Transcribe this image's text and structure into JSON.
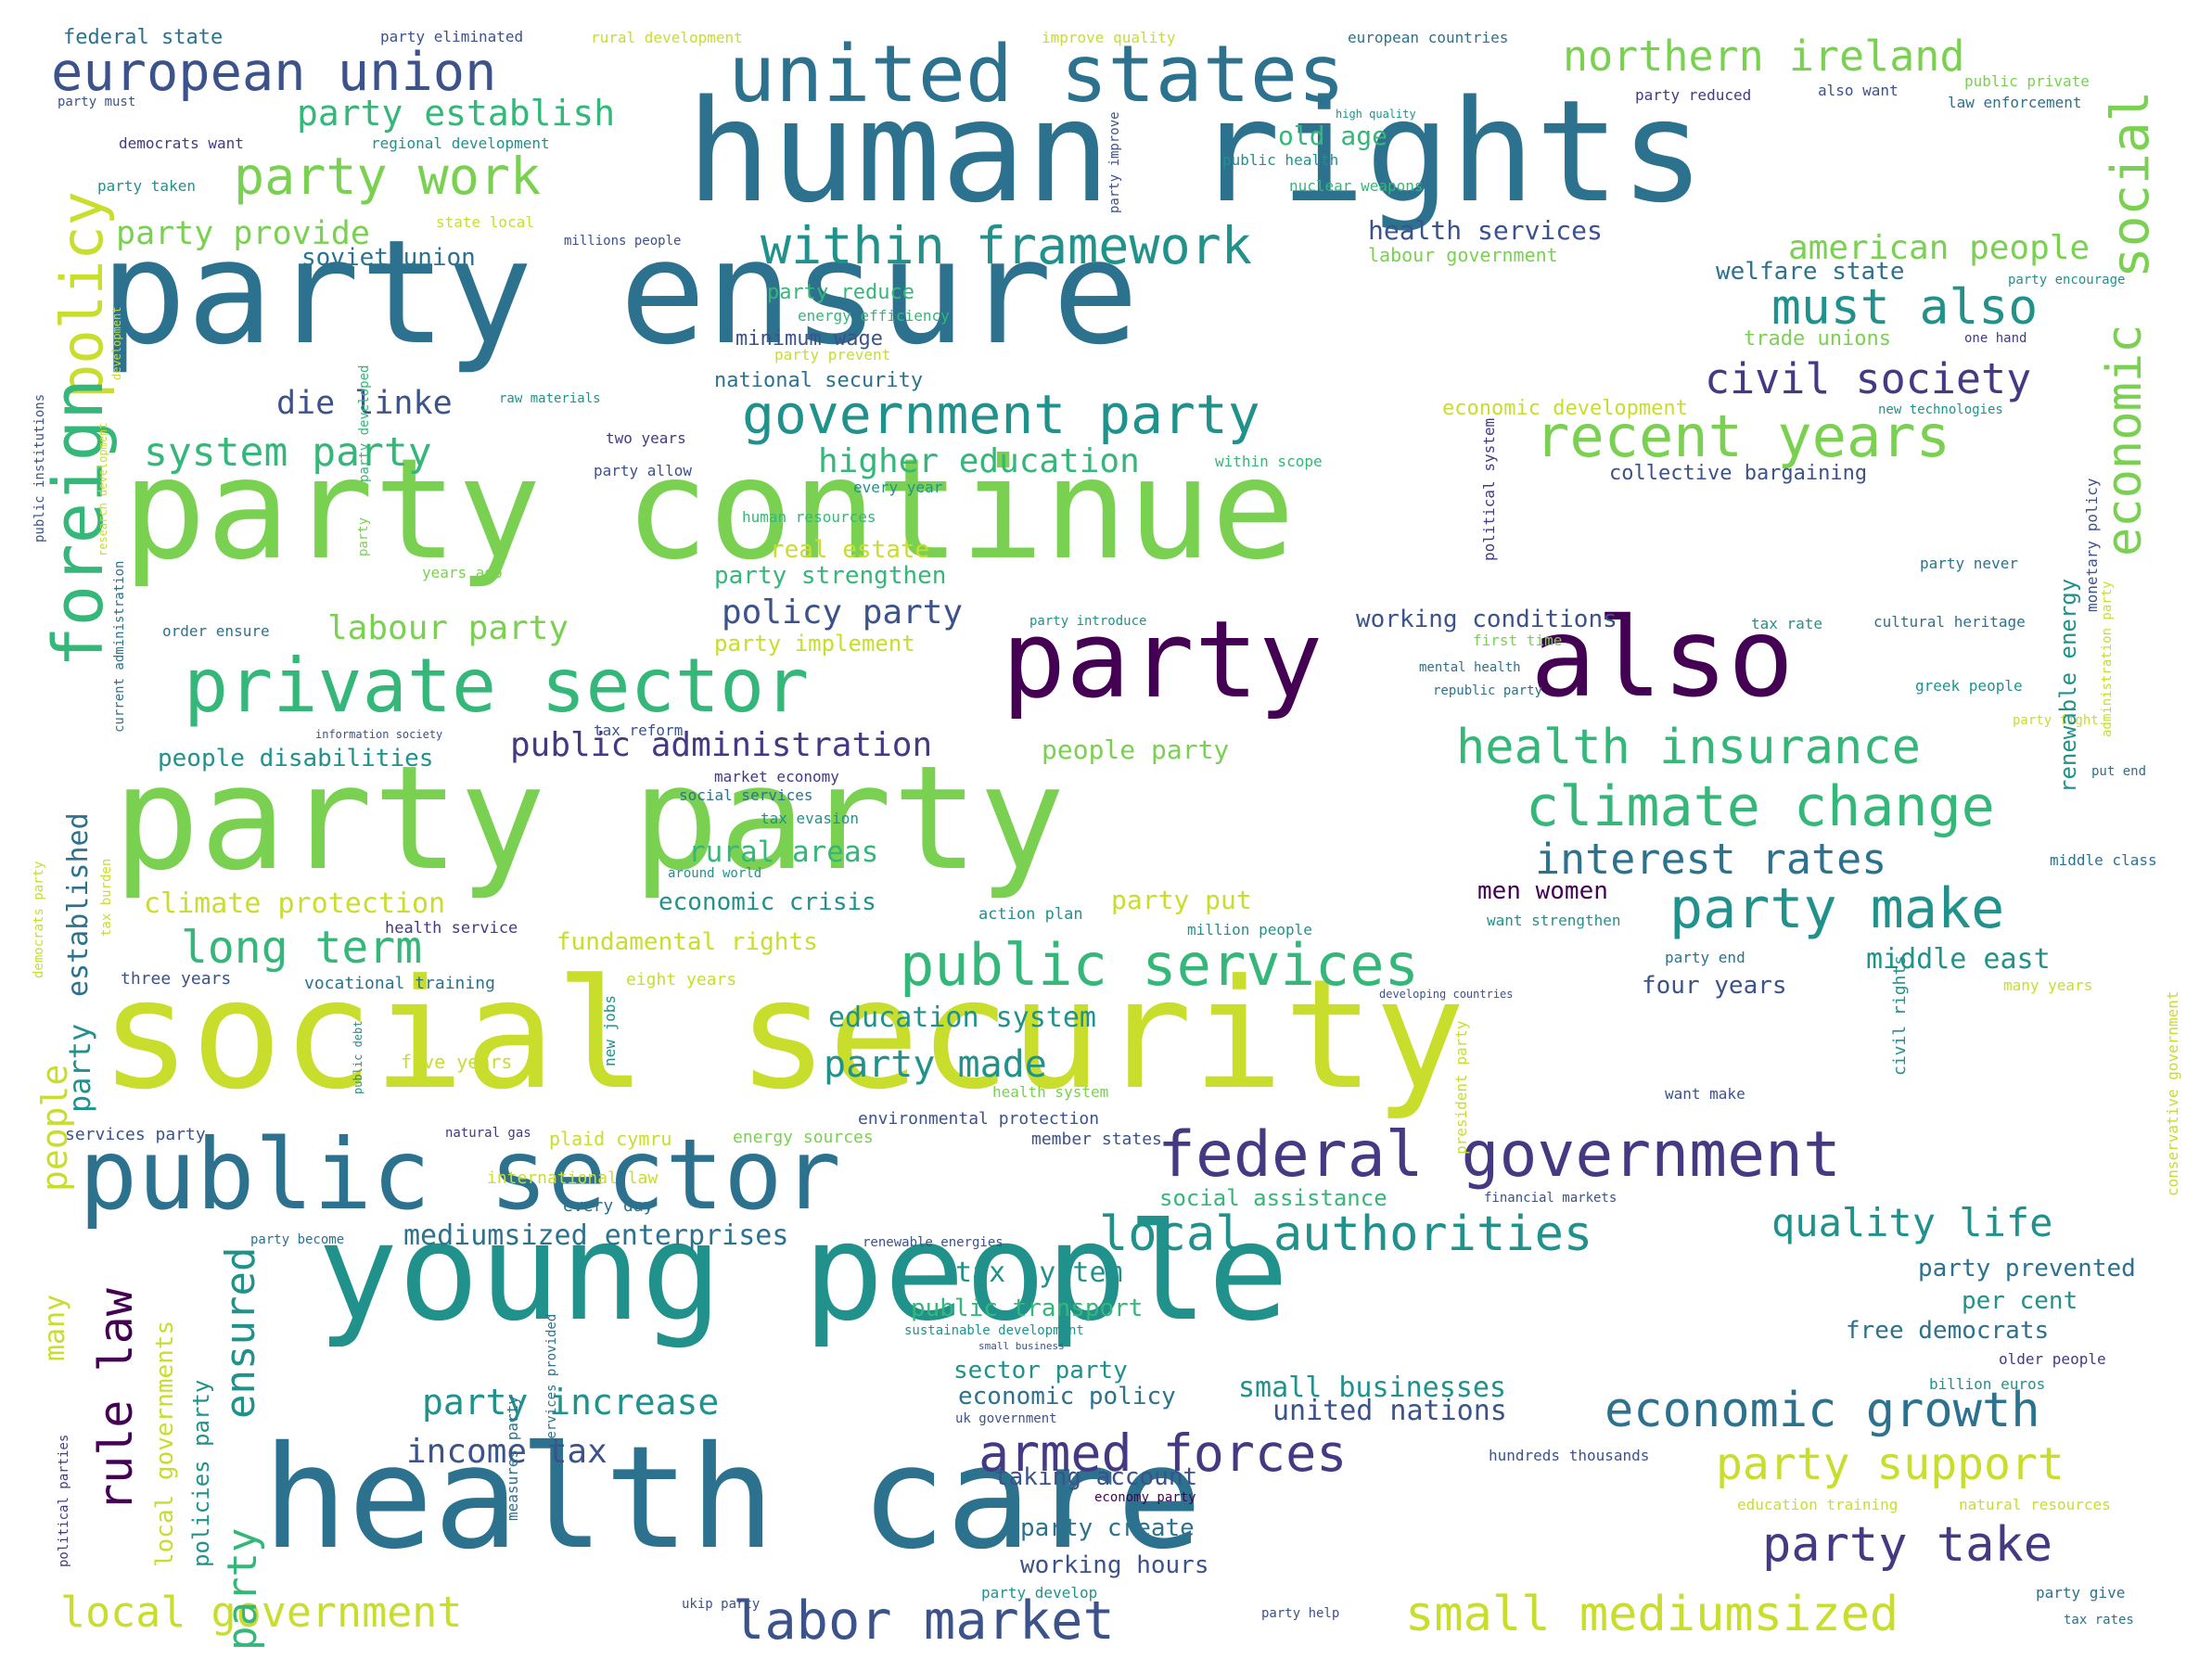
{
  "palette": {
    "yellow": "#c8dd2c",
    "light_green": "#7ad151",
    "green": "#35b779",
    "teal": "#21918c",
    "blue_teal": "#2c728e",
    "blue": "#3b528b",
    "indigo": "#443983",
    "purple": "#440154"
  },
  "words": [
    {
      "text": "human rights",
      "color": "blue_teal"
    },
    {
      "text": "party ensure",
      "color": "blue_teal"
    },
    {
      "text": "party continue",
      "color": "light_green"
    },
    {
      "text": "party",
      "color": "purple"
    },
    {
      "text": "also",
      "color": "purple"
    },
    {
      "text": "party party",
      "color": "light_green"
    },
    {
      "text": "social security",
      "color": "yellow"
    },
    {
      "text": "young people",
      "color": "teal"
    },
    {
      "text": "health care",
      "color": "blue_teal"
    },
    {
      "text": "public sector",
      "color": "blue_teal"
    },
    {
      "text": "united states",
      "color": "blue_teal"
    },
    {
      "text": "european union",
      "color": "blue"
    },
    {
      "text": "private sector",
      "color": "green"
    },
    {
      "text": "federal government",
      "color": "indigo"
    },
    {
      "text": "northern ireland",
      "color": "light_green"
    },
    {
      "text": "within framework",
      "color": "teal"
    },
    {
      "text": "government party",
      "color": "teal"
    },
    {
      "text": "recent years",
      "color": "light_green"
    },
    {
      "text": "must also",
      "color": "teal"
    },
    {
      "text": "civil society",
      "color": "indigo"
    },
    {
      "text": "health insurance",
      "color": "green"
    },
    {
      "text": "climate change",
      "color": "green"
    },
    {
      "text": "party make",
      "color": "teal"
    },
    {
      "text": "interest rates",
      "color": "blue_teal"
    },
    {
      "text": "public services",
      "color": "green"
    },
    {
      "text": "party made",
      "color": "teal"
    },
    {
      "text": "local authorities",
      "color": "teal"
    },
    {
      "text": "quality life",
      "color": "teal"
    },
    {
      "text": "economic growth",
      "color": "blue_teal"
    },
    {
      "text": "armed forces",
      "color": "indigo"
    },
    {
      "text": "party support",
      "color": "yellow"
    },
    {
      "text": "party take",
      "color": "indigo"
    },
    {
      "text": "labor market",
      "color": "blue"
    },
    {
      "text": "small mediumsized",
      "color": "yellow"
    },
    {
      "text": "local government",
      "color": "yellow"
    },
    {
      "text": "party work",
      "color": "light_green"
    },
    {
      "text": "party establish",
      "color": "green"
    },
    {
      "text": "party provide",
      "color": "light_green"
    },
    {
      "text": "long term",
      "color": "green"
    },
    {
      "text": "system party",
      "color": "green"
    },
    {
      "text": "die linke",
      "color": "blue"
    },
    {
      "text": "labour party",
      "color": "light_green"
    },
    {
      "text": "policy party",
      "color": "blue"
    },
    {
      "text": "public administration",
      "color": "indigo"
    },
    {
      "text": "people disabilities",
      "color": "teal"
    },
    {
      "text": "higher education",
      "color": "green"
    },
    {
      "text": "party strengthen",
      "color": "green"
    },
    {
      "text": "real estate",
      "color": "yellow"
    },
    {
      "text": "rural areas",
      "color": "green"
    },
    {
      "text": "economic crisis",
      "color": "teal"
    },
    {
      "text": "climate protection",
      "color": "yellow"
    },
    {
      "text": "fundamental rights",
      "color": "yellow"
    },
    {
      "text": "education system",
      "color": "teal"
    },
    {
      "text": "mediumsized enterprises",
      "color": "blue_teal"
    },
    {
      "text": "income tax",
      "color": "blue"
    },
    {
      "text": "party increase",
      "color": "teal"
    },
    {
      "text": "small businesses",
      "color": "teal"
    },
    {
      "text": "united nations",
      "color": "blue"
    },
    {
      "text": "tax system",
      "color": "teal"
    },
    {
      "text": "public transport",
      "color": "green"
    },
    {
      "text": "sector party",
      "color": "teal"
    },
    {
      "text": "economic policy",
      "color": "blue_teal"
    },
    {
      "text": "taking account",
      "color": "blue"
    },
    {
      "text": "party create",
      "color": "blue_teal"
    },
    {
      "text": "working hours",
      "color": "blue"
    },
    {
      "text": "men women",
      "color": "purple"
    },
    {
      "text": "middle east",
      "color": "teal"
    },
    {
      "text": "four years",
      "color": "blue"
    },
    {
      "text": "party prevented",
      "color": "blue_teal"
    },
    {
      "text": "per cent",
      "color": "teal"
    },
    {
      "text": "free democrats",
      "color": "blue_teal"
    },
    {
      "text": "working conditions",
      "color": "blue"
    },
    {
      "text": "american people",
      "color": "light_green"
    },
    {
      "text": "welfare state",
      "color": "blue_teal"
    },
    {
      "text": "health services",
      "color": "blue"
    },
    {
      "text": "soviet union",
      "color": "blue_teal"
    },
    {
      "text": "minimum wage",
      "color": "blue"
    },
    {
      "text": "national security",
      "color": "blue_teal"
    },
    {
      "text": "party reduce",
      "color": "green"
    },
    {
      "text": "collective bargaining",
      "color": "blue"
    },
    {
      "text": "old age",
      "color": "green"
    },
    {
      "text": "trade unions",
      "color": "light_green"
    },
    {
      "text": "people party",
      "color": "light_green"
    },
    {
      "text": "party implement",
      "color": "yellow"
    },
    {
      "text": "party put",
      "color": "yellow"
    },
    {
      "text": "social assistance",
      "color": "green"
    },
    {
      "text": "economic development",
      "color": "yellow"
    },
    {
      "text": "services party",
      "color": "blue"
    },
    {
      "text": "environmental protection",
      "color": "blue"
    },
    {
      "text": "member states",
      "color": "blue"
    },
    {
      "text": "energy sources",
      "color": "light_green"
    },
    {
      "text": "plaid cymru",
      "color": "yellow"
    },
    {
      "text": "international law",
      "color": "yellow"
    },
    {
      "text": "every day",
      "color": "blue_teal"
    },
    {
      "text": "five years",
      "color": "yellow"
    },
    {
      "text": "three years",
      "color": "blue"
    },
    {
      "text": "eight years",
      "color": "yellow"
    },
    {
      "text": "vocational training",
      "color": "blue_teal"
    },
    {
      "text": "health service",
      "color": "indigo"
    },
    {
      "text": "action plan",
      "color": "teal"
    },
    {
      "text": "million people",
      "color": "teal"
    },
    {
      "text": "want strengthen",
      "color": "teal"
    },
    {
      "text": "party end",
      "color": "blue_teal"
    },
    {
      "text": "many years",
      "color": "yellow"
    },
    {
      "text": "want make",
      "color": "blue"
    },
    {
      "text": "financial markets",
      "color": "blue"
    },
    {
      "text": "renewable energies",
      "color": "blue"
    },
    {
      "text": "sustainable development",
      "color": "teal"
    },
    {
      "text": "small business",
      "color": "blue"
    },
    {
      "text": "uk government",
      "color": "blue"
    },
    {
      "text": "economy party",
      "color": "purple"
    },
    {
      "text": "hundreds thousands",
      "color": "blue"
    },
    {
      "text": "education training",
      "color": "yellow"
    },
    {
      "text": "natural resources",
      "color": "yellow"
    },
    {
      "text": "party develop",
      "color": "teal"
    },
    {
      "text": "party help",
      "color": "blue"
    },
    {
      "text": "ukip party",
      "color": "blue"
    },
    {
      "text": "party give",
      "color": "blue_teal"
    },
    {
      "text": "tax rates",
      "color": "blue_teal"
    },
    {
      "text": "older people",
      "color": "indigo"
    },
    {
      "text": "billion euros",
      "color": "teal"
    },
    {
      "text": "middle class",
      "color": "blue_teal"
    },
    {
      "text": "put end",
      "color": "blue_teal"
    },
    {
      "text": "party fight",
      "color": "yellow"
    },
    {
      "text": "greek people",
      "color": "teal"
    },
    {
      "text": "cultural heritage",
      "color": "blue_teal"
    },
    {
      "text": "tax rate",
      "color": "teal"
    },
    {
      "text": "party introduce",
      "color": "teal"
    },
    {
      "text": "first time",
      "color": "light_green"
    },
    {
      "text": "mental health",
      "color": "blue_teal"
    },
    {
      "text": "republic party",
      "color": "blue_teal"
    },
    {
      "text": "party never",
      "color": "blue_teal"
    },
    {
      "text": "new technologies",
      "color": "teal"
    },
    {
      "text": "party encourage",
      "color": "teal"
    },
    {
      "text": "one hand",
      "color": "indigo"
    },
    {
      "text": "labour government",
      "color": "light_green"
    },
    {
      "text": "millions people",
      "color": "blue"
    },
    {
      "text": "state local",
      "color": "yellow"
    },
    {
      "text": "nuclear weapons",
      "color": "green"
    },
    {
      "text": "public health",
      "color": "teal"
    },
    {
      "text": "regional development",
      "color": "teal"
    },
    {
      "text": "high quality",
      "color": "teal"
    },
    {
      "text": "party reduced",
      "color": "indigo"
    },
    {
      "text": "also want",
      "color": "blue"
    },
    {
      "text": "public private",
      "color": "light_green"
    },
    {
      "text": "law enforcement",
      "color": "blue_teal"
    },
    {
      "text": "european countries",
      "color": "blue_teal"
    },
    {
      "text": "improve quality",
      "color": "yellow"
    },
    {
      "text": "rural development",
      "color": "yellow"
    },
    {
      "text": "party eliminated",
      "color": "blue"
    },
    {
      "text": "federal state",
      "color": "blue_teal"
    },
    {
      "text": "party must",
      "color": "blue"
    },
    {
      "text": "democrats want",
      "color": "indigo"
    },
    {
      "text": "party taken",
      "color": "teal"
    },
    {
      "text": "energy efficiency",
      "color": "green"
    },
    {
      "text": "party prevent",
      "color": "yellow"
    },
    {
      "text": "raw materials",
      "color": "teal"
    },
    {
      "text": "two years",
      "color": "indigo"
    },
    {
      "text": "party allow",
      "color": "blue"
    },
    {
      "text": "every year",
      "color": "teal"
    },
    {
      "text": "within scope",
      "color": "green"
    },
    {
      "text": "human resources",
      "color": "green"
    },
    {
      "text": "years ago",
      "color": "light_green"
    },
    {
      "text": "order ensure",
      "color": "blue_teal"
    },
    {
      "text": "information society",
      "color": "blue"
    },
    {
      "text": "tax reform",
      "color": "blue"
    },
    {
      "text": "market economy",
      "color": "indigo"
    },
    {
      "text": "social services",
      "color": "blue_teal"
    },
    {
      "text": "tax evasion",
      "color": "teal"
    },
    {
      "text": "around world",
      "color": "teal"
    },
    {
      "text": "developing countries",
      "color": "blue"
    },
    {
      "text": "natural gas",
      "color": "indigo"
    },
    {
      "text": "party become",
      "color": "blue_teal"
    },
    {
      "text": "health system",
      "color": "light_green"
    },
    {
      "text": "policy",
      "color": "yellow"
    },
    {
      "text": "foreign",
      "color": "green"
    },
    {
      "text": "social",
      "color": "light_green"
    },
    {
      "text": "economic",
      "color": "light_green"
    },
    {
      "text": "established",
      "color": "blue_teal"
    },
    {
      "text": "people",
      "color": "yellow"
    },
    {
      "text": "party",
      "color": "teal"
    },
    {
      "text": "many",
      "color": "yellow"
    },
    {
      "text": "rule law",
      "color": "purple"
    },
    {
      "text": "ensured",
      "color": "teal"
    },
    {
      "text": "party",
      "color": "green"
    },
    {
      "text": "local governments",
      "color": "yellow"
    },
    {
      "text": "policies party",
      "color": "teal"
    },
    {
      "text": "renewable energy",
      "color": "teal"
    },
    {
      "text": "monetary policy",
      "color": "blue"
    },
    {
      "text": "administration party",
      "color": "yellow"
    },
    {
      "text": "conservative government",
      "color": "yellow"
    },
    {
      "text": "civil rights",
      "color": "teal"
    },
    {
      "text": "president party",
      "color": "yellow"
    },
    {
      "text": "political system",
      "color": "indigo"
    },
    {
      "text": "party improve",
      "color": "blue"
    },
    {
      "text": "new jobs",
      "color": "teal"
    },
    {
      "text": "public debt",
      "color": "teal"
    },
    {
      "text": "measures party",
      "color": "blue_teal"
    },
    {
      "text": "services provided",
      "color": "blue_teal"
    },
    {
      "text": "political parties",
      "color": "indigo"
    },
    {
      "text": "democrats party",
      "color": "yellow"
    },
    {
      "text": "tax burden",
      "color": "yellow"
    },
    {
      "text": "current administration",
      "color": "blue_teal"
    },
    {
      "text": "public institutions",
      "color": "blue"
    },
    {
      "text": "development",
      "color": "yellow"
    },
    {
      "text": "research development",
      "color": "yellow"
    },
    {
      "text": "party developed",
      "color": "green"
    },
    {
      "text": "party",
      "color": "light_green"
    }
  ]
}
